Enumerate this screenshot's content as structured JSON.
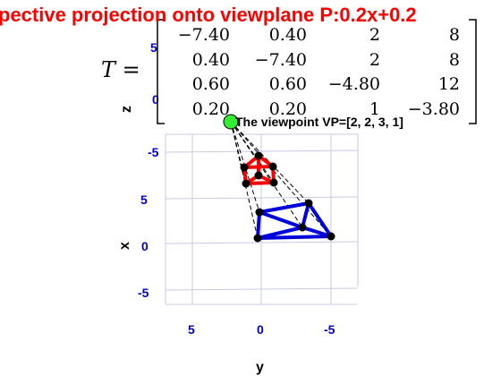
{
  "title": "pective projection onto viewplane P:0.2x+0.2",
  "matrix": {
    "label": "T =",
    "rows": [
      [
        "−7.40",
        "0.40",
        "2",
        "8"
      ],
      [
        "0.40",
        "−7.40",
        "2",
        "8"
      ],
      [
        "0.60",
        "0.60",
        "−4.80",
        "12"
      ],
      [
        "0.20",
        "0.20",
        "1",
        "−3.80"
      ]
    ]
  },
  "viewpoint_label": "The viewpoint VP=[2, 2, 3, 1]",
  "axes": {
    "z": {
      "label": "z",
      "ticks": [
        "5",
        "0",
        "-5"
      ]
    },
    "x": {
      "label": "x",
      "ticks": [
        "5",
        "0",
        "-5"
      ]
    },
    "y": {
      "label": "y",
      "ticks": [
        "5",
        "0",
        "-5"
      ]
    }
  },
  "colors": {
    "title": "#ff0000",
    "ticks": "#0000cc",
    "object": "#0000dd",
    "projection": "#ff0000",
    "viewpoint": "#33ee33"
  }
}
